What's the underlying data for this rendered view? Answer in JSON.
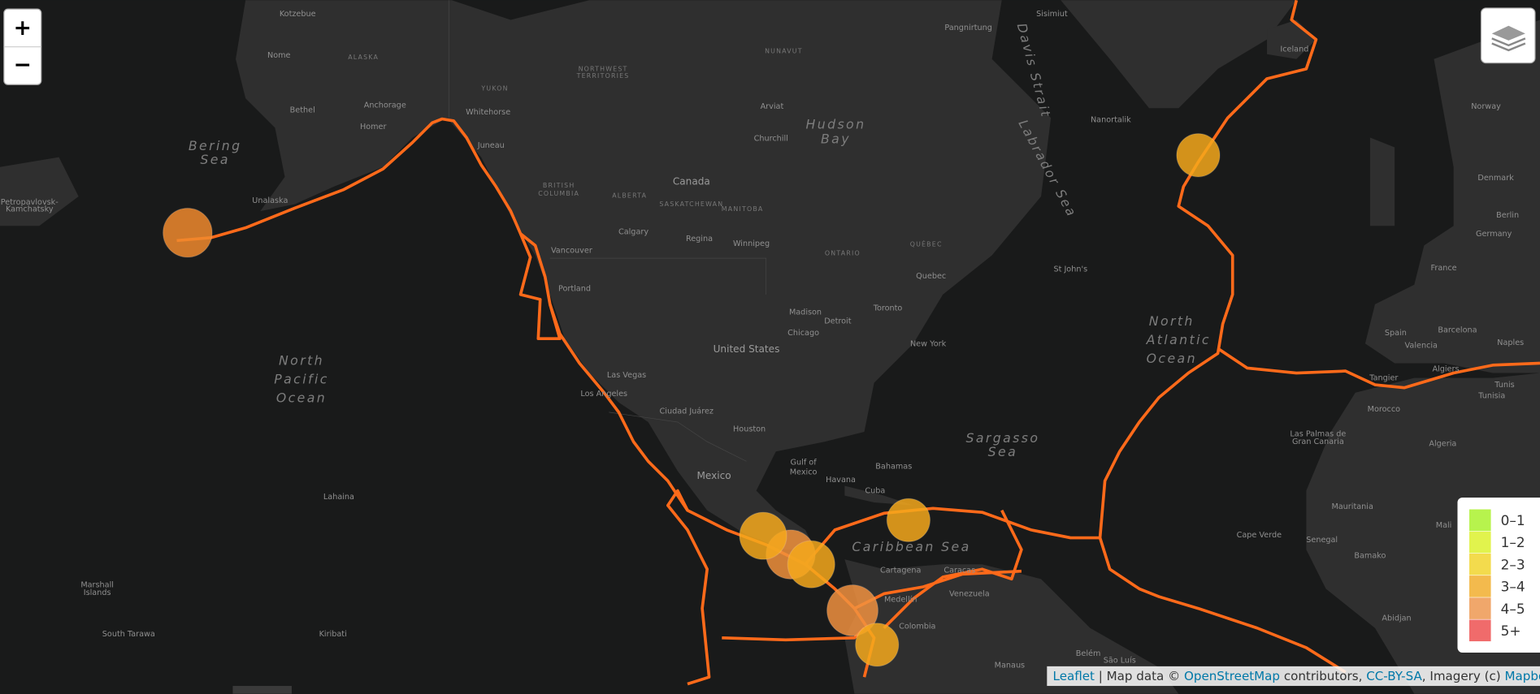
{
  "zoom_controls": {
    "zoom_in": "+",
    "zoom_out": "−"
  },
  "legend": {
    "items": [
      {
        "label": "0–1",
        "color": "#b7f34d"
      },
      {
        "label": "1–2",
        "color": "#e1f34d"
      },
      {
        "label": "2–3",
        "color": "#f3db4d"
      },
      {
        "label": "3–4",
        "color": "#f3ba4d"
      },
      {
        "label": "4–5",
        "color": "#f0a76b"
      },
      {
        "label": "5+",
        "color": "#f06b6b"
      }
    ]
  },
  "attribution": {
    "parts": [
      "Leaflet",
      " | Map data © ",
      "OpenStreetMap",
      " contributors, ",
      "CC-BY-SA",
      ", Imagery (c) ",
      "Mapbox"
    ]
  },
  "map": {
    "labels": [
      "Bering",
      "Sea",
      "North",
      "Pacific",
      "Ocean",
      "Hudson",
      "Bay",
      "Canada",
      "United States",
      "Mexico",
      "Gulf of",
      "Mexico",
      "Caribbean Sea",
      "Sargasso",
      "Sea",
      "North",
      "Atlantic",
      "Ocean",
      "Davis Strait",
      "Labrador Sea",
      "Iceland",
      "Norway",
      "Denmark",
      "Germany",
      "France",
      "Spain",
      "Morocco",
      "Algeria",
      "Mali",
      "Mauritania",
      "Venezuela",
      "Colombia",
      "Cuba",
      "ALASKA",
      "YUKON",
      "NORTHWEST",
      "TERRITORIES",
      "NUNAVUT",
      "BRITISH",
      "COLUMBIA",
      "ALBERTA",
      "SASKATCHEWAN",
      "MANITOBA",
      "QUÉBEC",
      "ONTARIO",
      "Anchorage",
      "Whitehorse",
      "Juneau",
      "Vancouver",
      "Calgary",
      "Portland",
      "Los Angeles",
      "Las Vegas",
      "Chicago",
      "Toronto",
      "New York",
      "Houston",
      "Havana",
      "Detroit",
      "Ciudad Juárez",
      "Caracas",
      "Medellín",
      "Cartagena",
      "St John's",
      "Quebec",
      "Unalaska",
      "Nome",
      "Kotzebue",
      "Lahaina",
      "South Tarawa",
      "Kiribati",
      "Marshall",
      "Islands",
      "Petropavlovsk-",
      "Kamchatsky",
      "Tunis",
      "Naples",
      "Barcelona",
      "Valencia",
      "Algiers",
      "Tangier",
      "Bamako",
      "Abidjan",
      "Senegal",
      "Cape Verde",
      "Sisimiut",
      "Pangnirtung",
      "Nanortalik",
      "Winnipeg",
      "Regina",
      "Arviat",
      "Churchill",
      "Bahamas",
      "Belém",
      "São Luís",
      "Manaus",
      "Berlin",
      "Bethel",
      "Homer",
      "Madison",
      "Tunisia",
      "Las Palmas de",
      "Gran Canaria"
    ]
  }
}
